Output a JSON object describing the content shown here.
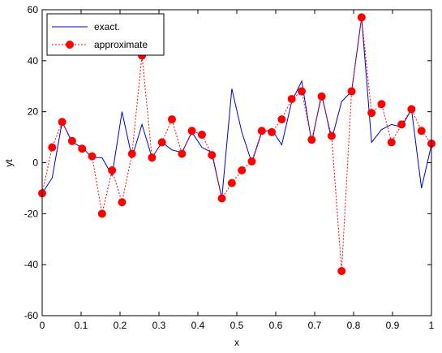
{
  "chart_data": {
    "type": "line",
    "title": "",
    "xlabel": "x",
    "ylabel": "yt",
    "xlim": [
      0,
      1
    ],
    "ylim": [
      -60,
      60
    ],
    "xticks": [
      0,
      0.1,
      0.2,
      0.3,
      0.4,
      0.5,
      0.6,
      0.7,
      0.8,
      0.9,
      1
    ],
    "xtick_labels": [
      "0",
      "0.1",
      "0.2",
      "0.3",
      "0.4",
      "0.5",
      "0.6",
      "0.7",
      "0.8",
      "0.9",
      "1"
    ],
    "yticks": [
      -60,
      -40,
      -20,
      0,
      20,
      40,
      60
    ],
    "ytick_labels": [
      "-60",
      "-40",
      "-20",
      "0",
      "20",
      "40",
      "60"
    ],
    "grid": false,
    "legend_position": "top-left",
    "series": [
      {
        "name": "exact.",
        "color": "#0000cc",
        "style": "solid",
        "marker": "none",
        "x": [
          0,
          0.0256,
          0.0513,
          0.0769,
          0.1026,
          0.1282,
          0.1538,
          0.1795,
          0.2051,
          0.2308,
          0.2564,
          0.2821,
          0.3077,
          0.3333,
          0.359,
          0.3846,
          0.4103,
          0.4359,
          0.4615,
          0.4872,
          0.5128,
          0.5385,
          0.5641,
          0.5897,
          0.6154,
          0.641,
          0.6667,
          0.6923,
          0.7179,
          0.7436,
          0.7692,
          0.7949,
          0.8205,
          0.8462,
          0.8718,
          0.8974,
          0.9231,
          0.9487,
          0.9744,
          1
        ],
        "y": [
          -12,
          -6,
          16,
          8,
          6,
          2,
          2,
          -5,
          20,
          2,
          15,
          2,
          8,
          5,
          4,
          12,
          6,
          4,
          -14,
          29,
          12,
          0,
          12,
          13,
          7,
          24,
          32,
          8,
          27,
          9,
          24,
          28,
          57,
          8,
          13,
          15,
          14,
          21,
          -10,
          7
        ]
      },
      {
        "name": "approximate",
        "color": "#ff0000",
        "style": "dotted",
        "marker": "circle",
        "x": [
          0,
          0.0256,
          0.0513,
          0.0769,
          0.1026,
          0.1282,
          0.1538,
          0.1795,
          0.2051,
          0.2308,
          0.2564,
          0.2821,
          0.3077,
          0.3333,
          0.359,
          0.3846,
          0.4103,
          0.4359,
          0.4615,
          0.4872,
          0.5128,
          0.5385,
          0.5641,
          0.5897,
          0.6154,
          0.641,
          0.6667,
          0.6923,
          0.7179,
          0.7436,
          0.7692,
          0.7949,
          0.8205,
          0.8462,
          0.8718,
          0.8974,
          0.9231,
          0.9487,
          0.9744,
          1
        ],
        "y": [
          -12,
          6,
          16,
          8.5,
          5.5,
          2.5,
          -20,
          -3,
          -15.5,
          3.5,
          42,
          2,
          8,
          17,
          3.5,
          12.5,
          11,
          3,
          -14,
          -8,
          -3,
          0.5,
          12.5,
          12,
          17,
          25,
          28,
          9,
          26,
          10.5,
          -42.5,
          28,
          57,
          19.5,
          23,
          8,
          15,
          21,
          12.5,
          7.5
        ]
      }
    ]
  }
}
